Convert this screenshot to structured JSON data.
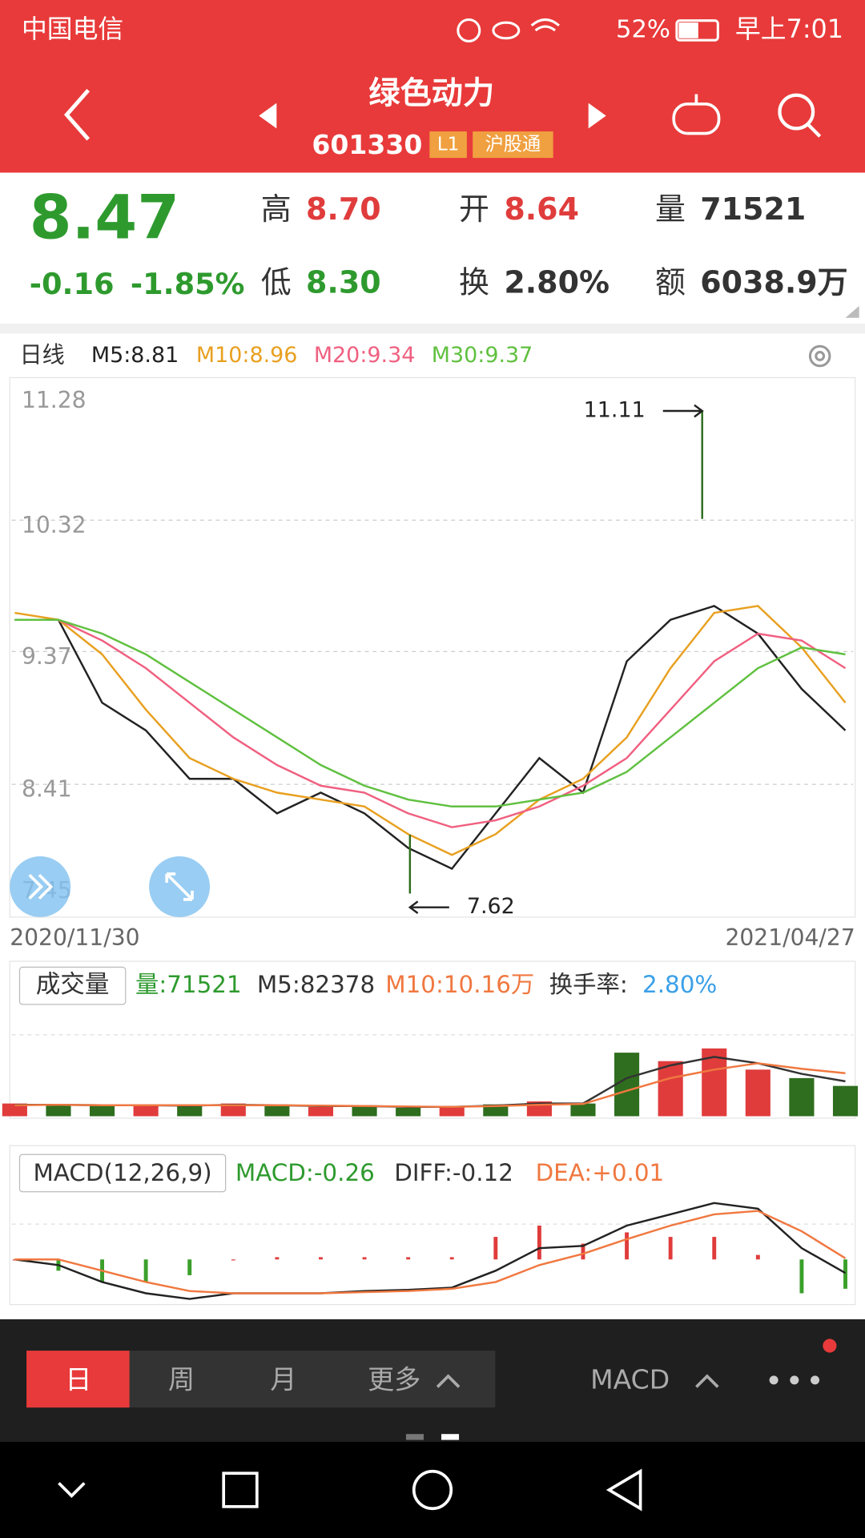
{
  "status_bar": {
    "carrier": "中国电信",
    "battery": "52%",
    "time": "早上7:01"
  },
  "header": {
    "title": "绿色动力",
    "code": "601330",
    "badges": [
      "L1",
      "沪股通"
    ]
  },
  "quote": {
    "price": "8.47",
    "change": "-0.16",
    "change_pct": "-1.85%",
    "price_color": "#2e9a2e",
    "items": [
      {
        "label": "高",
        "value": "8.70",
        "color": "#e03c3c"
      },
      {
        "label": "低",
        "value": "8.30",
        "color": "#2e9a2e"
      },
      {
        "label": "开",
        "value": "8.64",
        "color": "#e03c3c"
      },
      {
        "label": "换",
        "value": "2.80%",
        "color": "#333333"
      },
      {
        "label": "量",
        "value": "71521",
        "color": "#333333"
      },
      {
        "label": "额",
        "value": "6038.9万",
        "color": "#333333"
      }
    ]
  },
  "kline": {
    "type": "line",
    "period": "日线",
    "x_start": "2020/11/30",
    "x_end": "2021/04/27",
    "ylim": [
      7.45,
      11.28
    ],
    "yticks": [
      11.28,
      10.32,
      9.37,
      8.41,
      7.45
    ],
    "grid": true,
    "high": 11.11,
    "low": 7.62,
    "series": [
      {
        "label": "M5:8.81",
        "color": "#222222",
        "values": [
          9.6,
          9.6,
          9.0,
          8.8,
          8.45,
          8.45,
          8.2,
          8.35,
          8.2,
          7.95,
          7.8,
          8.2,
          8.6,
          8.35,
          9.3,
          9.6,
          9.7,
          9.5,
          9.1,
          8.8
        ]
      },
      {
        "label": "M10:8.96",
        "color": "#e8a020",
        "values": [
          9.65,
          9.6,
          9.35,
          8.95,
          8.6,
          8.45,
          8.35,
          8.3,
          8.25,
          8.05,
          7.9,
          8.05,
          8.3,
          8.45,
          8.75,
          9.25,
          9.65,
          9.7,
          9.4,
          9.0
        ]
      },
      {
        "label": "M20:9.34",
        "color": "#f06080",
        "values": [
          9.6,
          9.6,
          9.45,
          9.25,
          9.0,
          8.75,
          8.55,
          8.4,
          8.35,
          8.2,
          8.1,
          8.15,
          8.25,
          8.4,
          8.6,
          8.95,
          9.3,
          9.5,
          9.45,
          9.25
        ]
      },
      {
        "label": "M30:9.37",
        "color": "#60c040",
        "values": [
          9.6,
          9.6,
          9.5,
          9.35,
          9.15,
          8.95,
          8.75,
          8.55,
          8.4,
          8.3,
          8.25,
          8.25,
          8.3,
          8.35,
          8.5,
          8.75,
          9.0,
          9.25,
          9.4,
          9.35
        ]
      }
    ]
  },
  "volume": {
    "type": "bar",
    "title": "成交量",
    "ylim": [
      0,
      250000
    ],
    "legend": [
      {
        "text": "量:71521",
        "color": "#2e9a2e"
      },
      {
        "text": "M5:82378",
        "color": "#333333"
      },
      {
        "text": "M10:10.16万",
        "color": "#f07840"
      },
      {
        "text": "换手率:",
        "color": "#333333"
      },
      {
        "text": "2.80%",
        "color": "#3aa0e8"
      }
    ],
    "values": [
      30000,
      28000,
      25000,
      26000,
      24000,
      30000,
      25000,
      22000,
      24000,
      20000,
      22000,
      28000,
      35000,
      30000,
      150000,
      130000,
      160000,
      110000,
      90000,
      71521
    ],
    "bar_colors": [
      "#e03c3c",
      "#2e6e1e",
      "#2e6e1e",
      "#e03c3c",
      "#2e6e1e",
      "#e03c3c",
      "#2e6e1e",
      "#e03c3c",
      "#2e6e1e",
      "#2e6e1e",
      "#e03c3c",
      "#2e6e1e",
      "#e03c3c",
      "#2e6e1e",
      "#2e6e1e",
      "#e03c3c",
      "#e03c3c",
      "#e03c3c",
      "#2e6e1e",
      "#2e6e1e"
    ],
    "series": [
      {
        "color": "#333333",
        "values": [
          27000,
          27000,
          26000,
          26000,
          25000,
          27000,
          26000,
          24000,
          24000,
          22000,
          22000,
          25000,
          30000,
          30000,
          90000,
          120000,
          140000,
          125000,
          100000,
          82378
        ]
      },
      {
        "color": "#f07840",
        "values": [
          26000,
          27000,
          26000,
          26000,
          26000,
          26000,
          26000,
          25000,
          24000,
          23000,
          22000,
          24000,
          27000,
          29000,
          60000,
          90000,
          110000,
          125000,
          112000,
          101600
        ]
      }
    ]
  },
  "macd": {
    "type": "bar",
    "title": "MACD(12,26,9)",
    "ylim": [
      -0.4,
      0.6
    ],
    "legend": [
      {
        "text": "MACD:-0.26",
        "color": "#2e9a2e"
      },
      {
        "text": "DIFF:-0.12",
        "color": "#333333"
      },
      {
        "text": "DEA:+0.01",
        "color": "#f07840"
      }
    ],
    "histogram": [
      0,
      -0.1,
      -0.2,
      -0.2,
      -0.14,
      0,
      0.02,
      0.02,
      0.02,
      0.02,
      0.02,
      0.2,
      0.3,
      0.14,
      0.24,
      0.2,
      0.2,
      0.04,
      -0.3,
      -0.26
    ],
    "series": [
      {
        "color": "#222222",
        "values": [
          0.0,
          -0.05,
          -0.2,
          -0.3,
          -0.35,
          -0.3,
          -0.3,
          -0.3,
          -0.28,
          -0.27,
          -0.25,
          -0.1,
          0.1,
          0.12,
          0.3,
          0.4,
          0.5,
          0.45,
          0.1,
          -0.12
        ]
      },
      {
        "color": "#f07840",
        "values": [
          0.0,
          0.0,
          -0.1,
          -0.2,
          -0.28,
          -0.3,
          -0.3,
          -0.3,
          -0.29,
          -0.28,
          -0.26,
          -0.2,
          -0.05,
          0.05,
          0.18,
          0.3,
          0.4,
          0.43,
          0.25,
          0.01
        ]
      }
    ]
  },
  "toolbar": {
    "tabs": [
      "日",
      "周",
      "月",
      "更多"
    ],
    "indicator": "MACD"
  }
}
